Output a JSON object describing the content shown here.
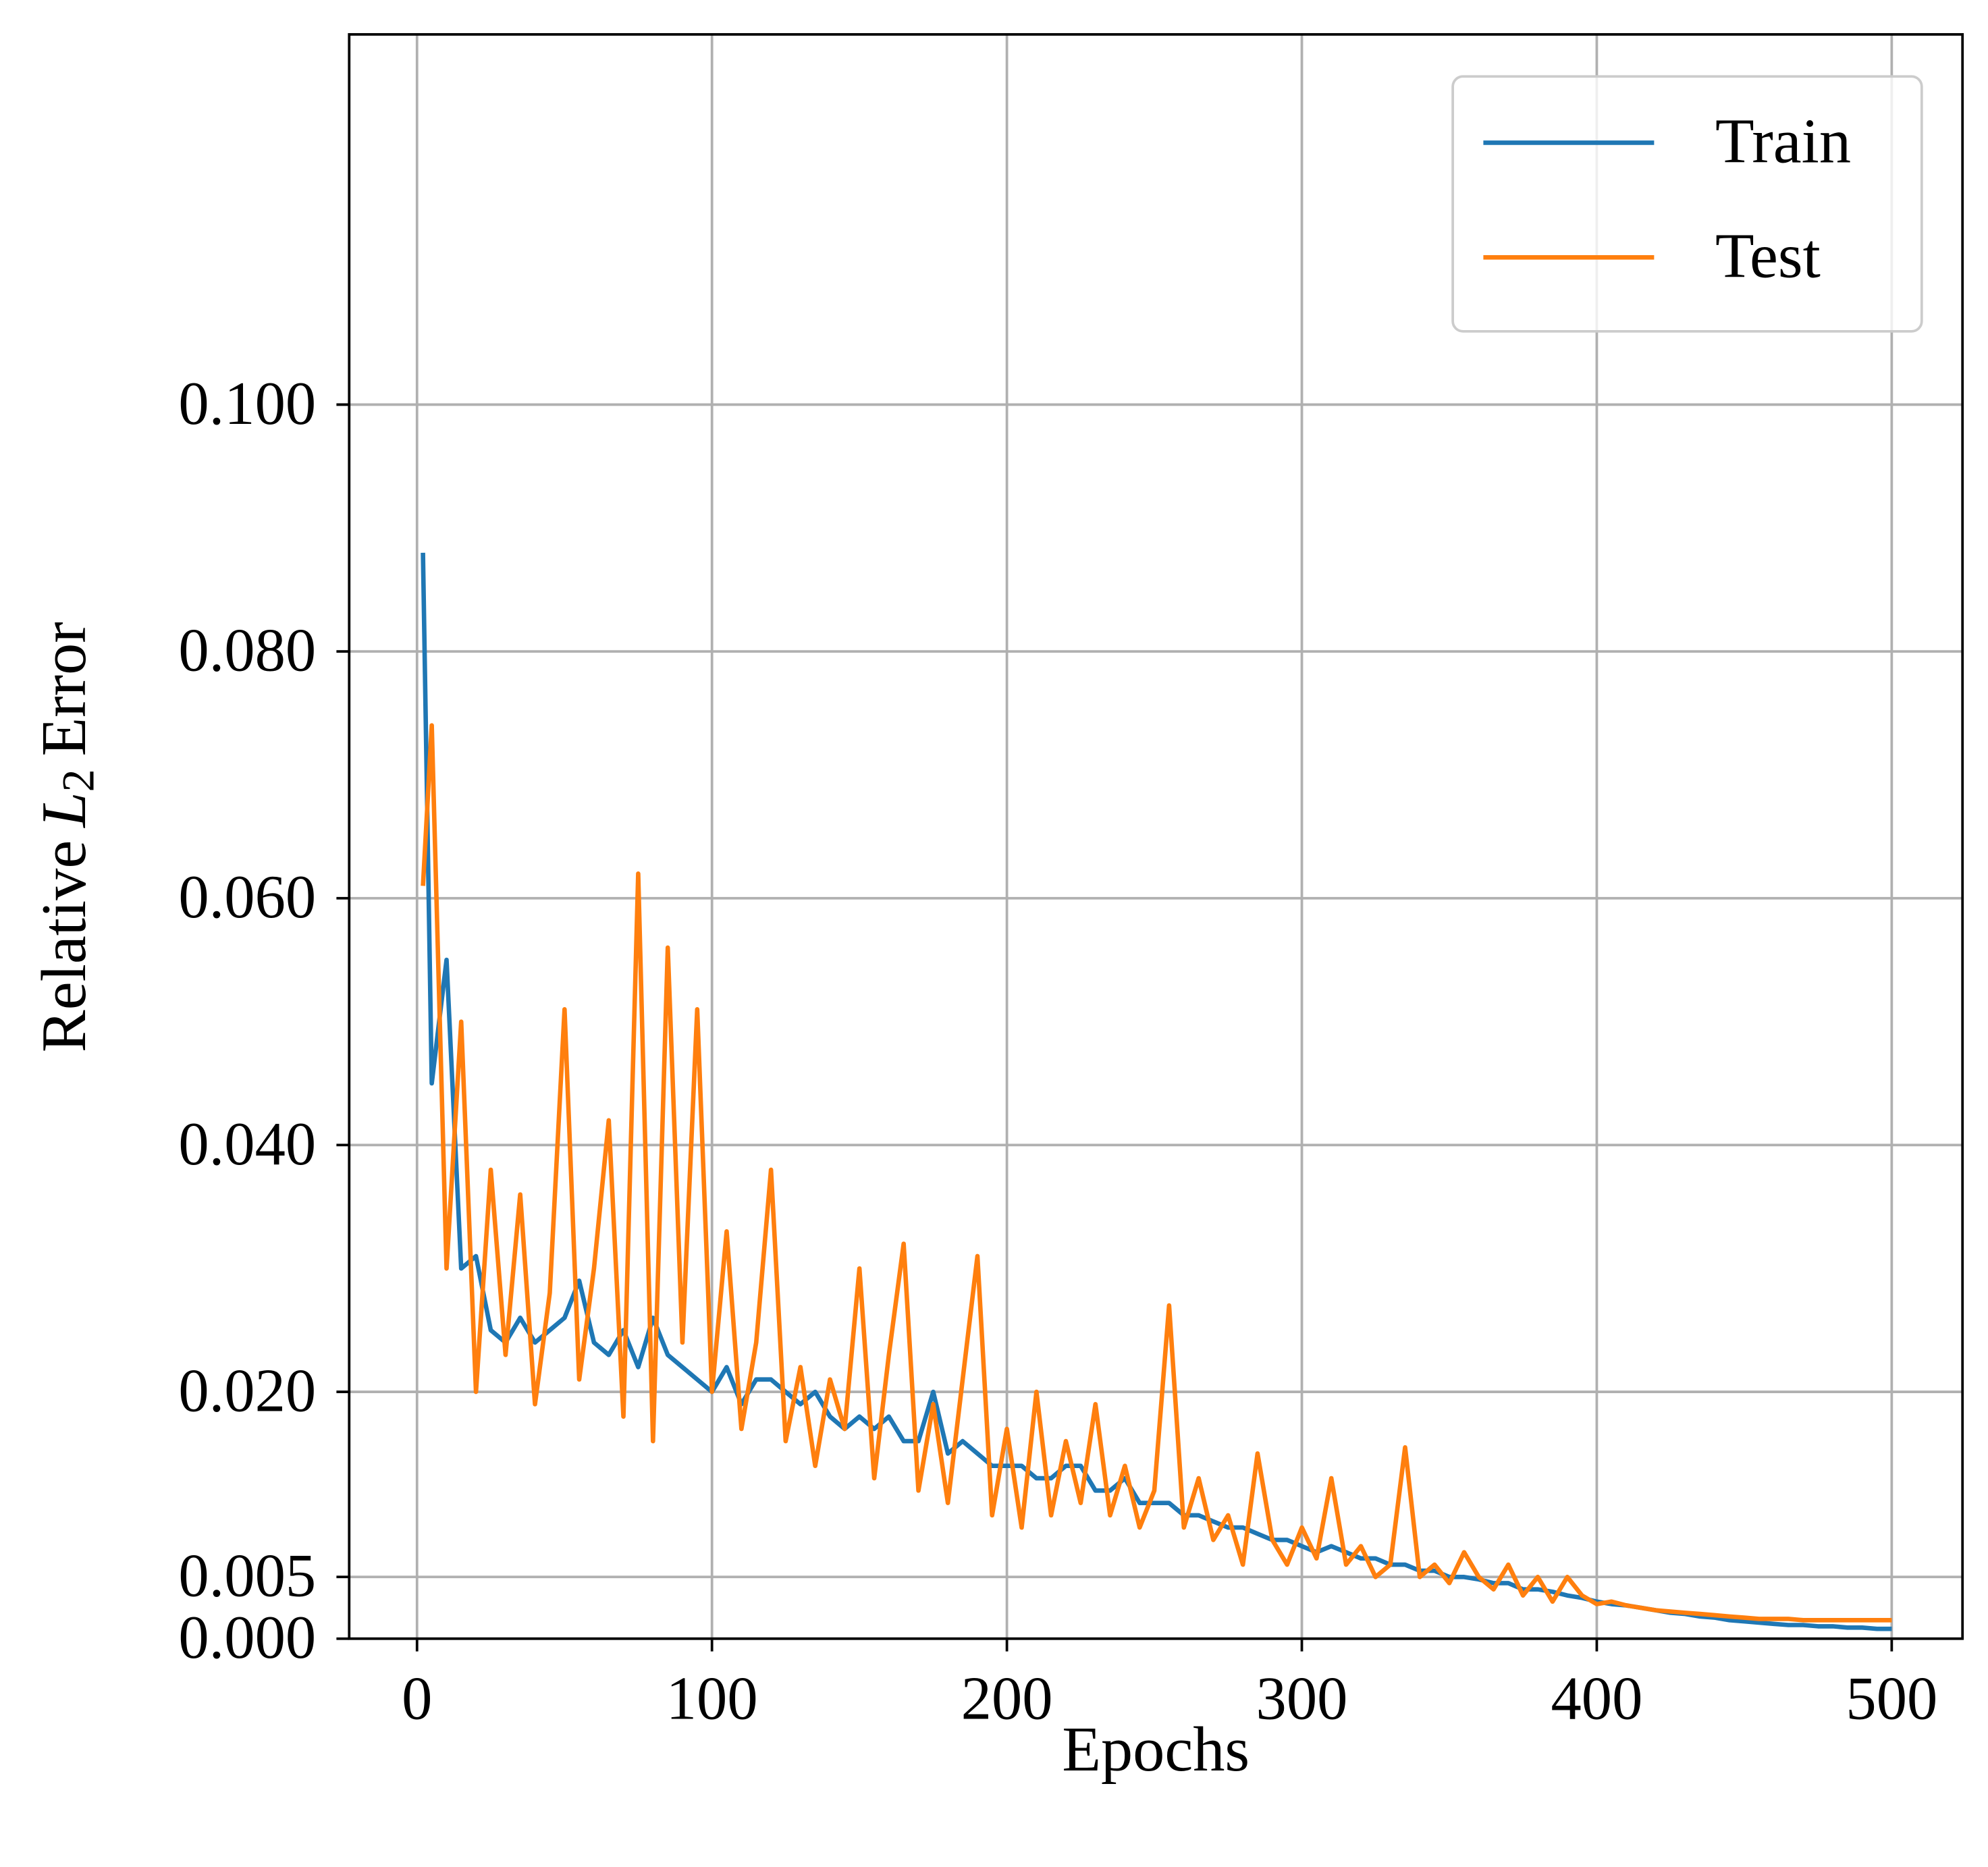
{
  "chart_data": {
    "type": "line",
    "x_label": "Epochs",
    "y_label": {
      "prefix": "Relative",
      "symbol": "L",
      "subscript": "2",
      "suffix": "Error"
    },
    "xlim": [
      -23,
      524
    ],
    "ylim": [
      0,
      0.13
    ],
    "xticks": [
      0,
      100,
      200,
      300,
      400,
      500
    ],
    "yticks": [
      {
        "value": 0,
        "label": "0.000"
      },
      {
        "value": 0.005,
        "label": "0.005"
      },
      {
        "value": 0.02,
        "label": "0.020"
      },
      {
        "value": 0.04,
        "label": "0.040"
      },
      {
        "value": 0.06,
        "label": "0.060"
      },
      {
        "value": 0.08,
        "label": "0.080"
      },
      {
        "value": 0.1,
        "label": "0.100"
      }
    ],
    "grid": true,
    "legend": "upper right",
    "x": [
      2,
      5,
      10,
      15,
      20,
      25,
      30,
      35,
      40,
      45,
      50,
      55,
      60,
      65,
      70,
      75,
      80,
      85,
      90,
      95,
      100,
      105,
      110,
      115,
      120,
      125,
      130,
      135,
      140,
      145,
      150,
      155,
      160,
      165,
      170,
      175,
      180,
      185,
      190,
      195,
      200,
      205,
      210,
      215,
      220,
      225,
      230,
      235,
      240,
      245,
      250,
      255,
      260,
      265,
      270,
      275,
      280,
      285,
      290,
      295,
      300,
      305,
      310,
      315,
      320,
      325,
      330,
      335,
      340,
      345,
      350,
      355,
      360,
      365,
      370,
      375,
      380,
      385,
      390,
      395,
      400,
      405,
      410,
      415,
      420,
      425,
      430,
      435,
      440,
      445,
      450,
      455,
      460,
      465,
      470,
      475,
      480,
      485,
      490,
      495,
      500
    ],
    "series": [
      {
        "name": "Train",
        "color": "#1f77b4",
        "values": [
          0.088,
          0.045,
          0.055,
          0.03,
          0.031,
          0.025,
          0.024,
          0.026,
          0.024,
          0.025,
          0.026,
          0.029,
          0.024,
          0.023,
          0.025,
          0.022,
          0.026,
          0.023,
          0.022,
          0.021,
          0.02,
          0.022,
          0.019,
          0.021,
          0.021,
          0.02,
          0.019,
          0.02,
          0.018,
          0.017,
          0.018,
          0.017,
          0.018,
          0.016,
          0.016,
          0.02,
          0.015,
          0.016,
          0.015,
          0.014,
          0.014,
          0.014,
          0.013,
          0.013,
          0.014,
          0.014,
          0.012,
          0.012,
          0.013,
          0.011,
          0.011,
          0.011,
          0.01,
          0.01,
          0.0095,
          0.009,
          0.009,
          0.0085,
          0.008,
          0.008,
          0.0075,
          0.007,
          0.0075,
          0.007,
          0.0065,
          0.0065,
          0.006,
          0.006,
          0.0055,
          0.0055,
          0.005,
          0.005,
          0.0048,
          0.0045,
          0.0045,
          0.004,
          0.004,
          0.0038,
          0.0035,
          0.0033,
          0.003,
          0.0028,
          0.0027,
          0.0025,
          0.0023,
          0.0021,
          0.002,
          0.0018,
          0.0017,
          0.0015,
          0.0014,
          0.0013,
          0.0012,
          0.0011,
          0.0011,
          0.001,
          0.001,
          0.0009,
          0.0009,
          0.0008,
          0.0008
        ]
      },
      {
        "name": "Test",
        "color": "#ff7f0e",
        "values": [
          0.061,
          0.074,
          0.03,
          0.05,
          0.02,
          0.038,
          0.023,
          0.036,
          0.019,
          0.028,
          0.051,
          0.021,
          0.03,
          0.042,
          0.018,
          0.062,
          0.016,
          0.056,
          0.024,
          0.051,
          0.02,
          0.033,
          0.017,
          0.024,
          0.038,
          0.016,
          0.022,
          0.014,
          0.021,
          0.017,
          0.03,
          0.013,
          0.023,
          0.032,
          0.012,
          0.019,
          0.011,
          0.021,
          0.031,
          0.01,
          0.017,
          0.009,
          0.02,
          0.01,
          0.016,
          0.011,
          0.019,
          0.01,
          0.014,
          0.009,
          0.012,
          0.027,
          0.009,
          0.013,
          0.008,
          0.01,
          0.006,
          0.015,
          0.008,
          0.006,
          0.009,
          0.0065,
          0.013,
          0.006,
          0.0075,
          0.005,
          0.006,
          0.0155,
          0.005,
          0.006,
          0.0045,
          0.007,
          0.005,
          0.004,
          0.006,
          0.0035,
          0.005,
          0.003,
          0.005,
          0.0035,
          0.0028,
          0.003,
          0.0027,
          0.0025,
          0.0023,
          0.0022,
          0.0021,
          0.002,
          0.0019,
          0.0018,
          0.0017,
          0.0016,
          0.0016,
          0.0016,
          0.0015,
          0.0015,
          0.0015,
          0.0015,
          0.0015,
          0.0015,
          0.0015
        ]
      }
    ]
  }
}
